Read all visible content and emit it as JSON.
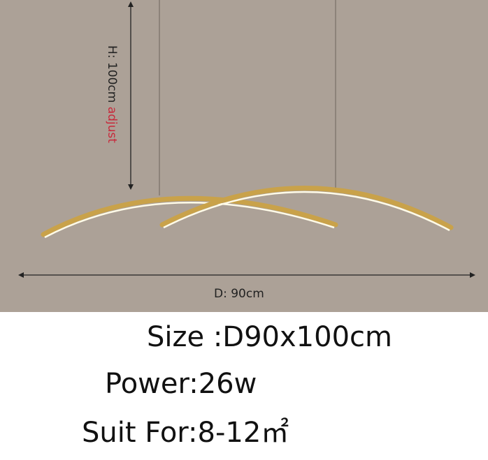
{
  "dimensions": {
    "height_label": "H:  100cm",
    "height_note": "adjust",
    "diameter_label": "D:  90cm"
  },
  "specs": {
    "size": "Size :D90x100cm",
    "power": "Power:26w",
    "suit_for": "Suit For:8-12㎡"
  },
  "colors": {
    "background": "#aca197",
    "lamp_gold": "#c9a24a",
    "note_red": "#c8283a"
  }
}
